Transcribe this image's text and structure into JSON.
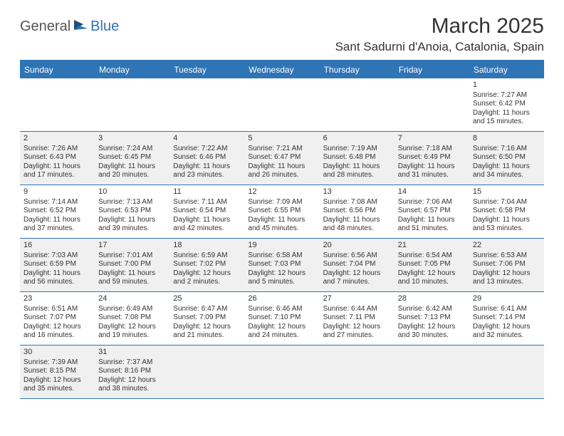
{
  "logo": {
    "text1": "General",
    "text2": "Blue"
  },
  "title": "March 2025",
  "location": "Sant Sadurni d'Anoia, Catalonia, Spain",
  "dayHeaders": [
    "Sunday",
    "Monday",
    "Tuesday",
    "Wednesday",
    "Thursday",
    "Friday",
    "Saturday"
  ],
  "weeks": [
    [
      null,
      null,
      null,
      null,
      null,
      null,
      {
        "n": "1",
        "sr": "Sunrise: 7:27 AM",
        "ss": "Sunset: 6:42 PM",
        "d1": "Daylight: 11 hours",
        "d2": "and 15 minutes."
      }
    ],
    [
      {
        "n": "2",
        "sr": "Sunrise: 7:26 AM",
        "ss": "Sunset: 6:43 PM",
        "d1": "Daylight: 11 hours",
        "d2": "and 17 minutes."
      },
      {
        "n": "3",
        "sr": "Sunrise: 7:24 AM",
        "ss": "Sunset: 6:45 PM",
        "d1": "Daylight: 11 hours",
        "d2": "and 20 minutes."
      },
      {
        "n": "4",
        "sr": "Sunrise: 7:22 AM",
        "ss": "Sunset: 6:46 PM",
        "d1": "Daylight: 11 hours",
        "d2": "and 23 minutes."
      },
      {
        "n": "5",
        "sr": "Sunrise: 7:21 AM",
        "ss": "Sunset: 6:47 PM",
        "d1": "Daylight: 11 hours",
        "d2": "and 26 minutes."
      },
      {
        "n": "6",
        "sr": "Sunrise: 7:19 AM",
        "ss": "Sunset: 6:48 PM",
        "d1": "Daylight: 11 hours",
        "d2": "and 28 minutes."
      },
      {
        "n": "7",
        "sr": "Sunrise: 7:18 AM",
        "ss": "Sunset: 6:49 PM",
        "d1": "Daylight: 11 hours",
        "d2": "and 31 minutes."
      },
      {
        "n": "8",
        "sr": "Sunrise: 7:16 AM",
        "ss": "Sunset: 6:50 PM",
        "d1": "Daylight: 11 hours",
        "d2": "and 34 minutes."
      }
    ],
    [
      {
        "n": "9",
        "sr": "Sunrise: 7:14 AM",
        "ss": "Sunset: 6:52 PM",
        "d1": "Daylight: 11 hours",
        "d2": "and 37 minutes."
      },
      {
        "n": "10",
        "sr": "Sunrise: 7:13 AM",
        "ss": "Sunset: 6:53 PM",
        "d1": "Daylight: 11 hours",
        "d2": "and 39 minutes."
      },
      {
        "n": "11",
        "sr": "Sunrise: 7:11 AM",
        "ss": "Sunset: 6:54 PM",
        "d1": "Daylight: 11 hours",
        "d2": "and 42 minutes."
      },
      {
        "n": "12",
        "sr": "Sunrise: 7:09 AM",
        "ss": "Sunset: 6:55 PM",
        "d1": "Daylight: 11 hours",
        "d2": "and 45 minutes."
      },
      {
        "n": "13",
        "sr": "Sunrise: 7:08 AM",
        "ss": "Sunset: 6:56 PM",
        "d1": "Daylight: 11 hours",
        "d2": "and 48 minutes."
      },
      {
        "n": "14",
        "sr": "Sunrise: 7:06 AM",
        "ss": "Sunset: 6:57 PM",
        "d1": "Daylight: 11 hours",
        "d2": "and 51 minutes."
      },
      {
        "n": "15",
        "sr": "Sunrise: 7:04 AM",
        "ss": "Sunset: 6:58 PM",
        "d1": "Daylight: 11 hours",
        "d2": "and 53 minutes."
      }
    ],
    [
      {
        "n": "16",
        "sr": "Sunrise: 7:03 AM",
        "ss": "Sunset: 6:59 PM",
        "d1": "Daylight: 11 hours",
        "d2": "and 56 minutes."
      },
      {
        "n": "17",
        "sr": "Sunrise: 7:01 AM",
        "ss": "Sunset: 7:00 PM",
        "d1": "Daylight: 11 hours",
        "d2": "and 59 minutes."
      },
      {
        "n": "18",
        "sr": "Sunrise: 6:59 AM",
        "ss": "Sunset: 7:02 PM",
        "d1": "Daylight: 12 hours",
        "d2": "and 2 minutes."
      },
      {
        "n": "19",
        "sr": "Sunrise: 6:58 AM",
        "ss": "Sunset: 7:03 PM",
        "d1": "Daylight: 12 hours",
        "d2": "and 5 minutes."
      },
      {
        "n": "20",
        "sr": "Sunrise: 6:56 AM",
        "ss": "Sunset: 7:04 PM",
        "d1": "Daylight: 12 hours",
        "d2": "and 7 minutes."
      },
      {
        "n": "21",
        "sr": "Sunrise: 6:54 AM",
        "ss": "Sunset: 7:05 PM",
        "d1": "Daylight: 12 hours",
        "d2": "and 10 minutes."
      },
      {
        "n": "22",
        "sr": "Sunrise: 6:53 AM",
        "ss": "Sunset: 7:06 PM",
        "d1": "Daylight: 12 hours",
        "d2": "and 13 minutes."
      }
    ],
    [
      {
        "n": "23",
        "sr": "Sunrise: 6:51 AM",
        "ss": "Sunset: 7:07 PM",
        "d1": "Daylight: 12 hours",
        "d2": "and 16 minutes."
      },
      {
        "n": "24",
        "sr": "Sunrise: 6:49 AM",
        "ss": "Sunset: 7:08 PM",
        "d1": "Daylight: 12 hours",
        "d2": "and 19 minutes."
      },
      {
        "n": "25",
        "sr": "Sunrise: 6:47 AM",
        "ss": "Sunset: 7:09 PM",
        "d1": "Daylight: 12 hours",
        "d2": "and 21 minutes."
      },
      {
        "n": "26",
        "sr": "Sunrise: 6:46 AM",
        "ss": "Sunset: 7:10 PM",
        "d1": "Daylight: 12 hours",
        "d2": "and 24 minutes."
      },
      {
        "n": "27",
        "sr": "Sunrise: 6:44 AM",
        "ss": "Sunset: 7:11 PM",
        "d1": "Daylight: 12 hours",
        "d2": "and 27 minutes."
      },
      {
        "n": "28",
        "sr": "Sunrise: 6:42 AM",
        "ss": "Sunset: 7:13 PM",
        "d1": "Daylight: 12 hours",
        "d2": "and 30 minutes."
      },
      {
        "n": "29",
        "sr": "Sunrise: 6:41 AM",
        "ss": "Sunset: 7:14 PM",
        "d1": "Daylight: 12 hours",
        "d2": "and 32 minutes."
      }
    ],
    [
      {
        "n": "30",
        "sr": "Sunrise: 7:39 AM",
        "ss": "Sunset: 8:15 PM",
        "d1": "Daylight: 12 hours",
        "d2": "and 35 minutes."
      },
      {
        "n": "31",
        "sr": "Sunrise: 7:37 AM",
        "ss": "Sunset: 8:16 PM",
        "d1": "Daylight: 12 hours",
        "d2": "and 38 minutes."
      },
      null,
      null,
      null,
      null,
      null
    ]
  ],
  "colors": {
    "accent": "#2f74b5",
    "shaded": "#f0f0f0",
    "text": "#333333",
    "bg": "#ffffff"
  }
}
